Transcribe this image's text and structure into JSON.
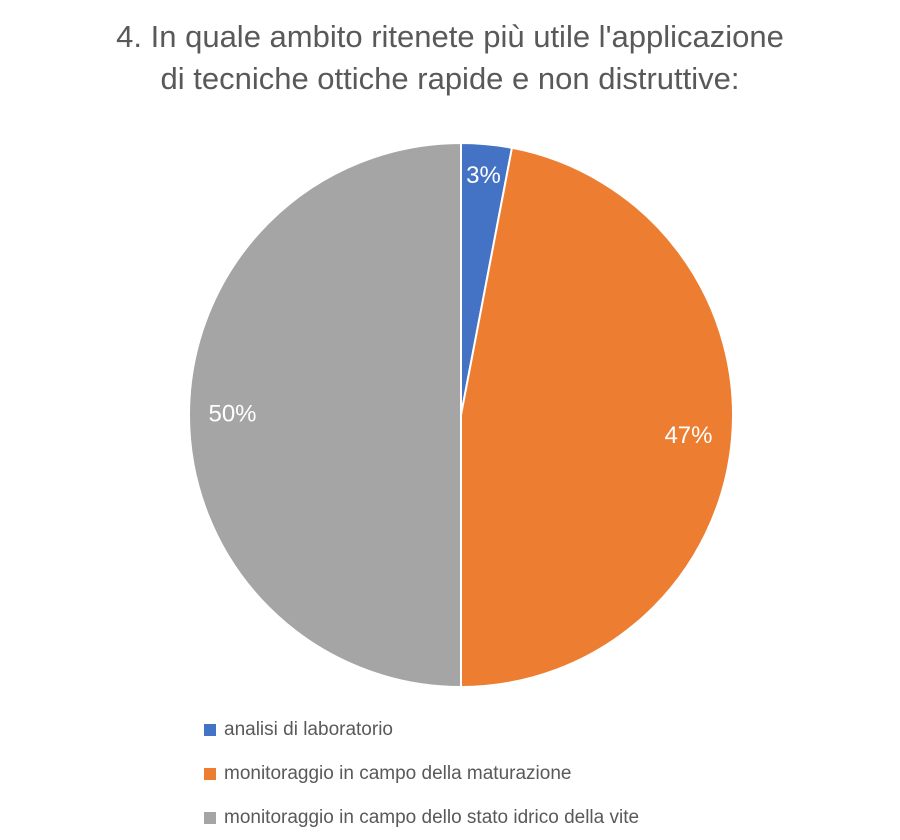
{
  "chart_data": {
    "type": "pie",
    "title_line1": "4. In quale ambito ritenete più utile l'applicazione",
    "title_line2": "di tecniche ottiche rapide e non distruttive:",
    "slices": [
      {
        "label": "analisi di laboratorio",
        "value": 3,
        "display": "3%",
        "color": "#4472C4"
      },
      {
        "label": "monitoraggio in campo della maturazione",
        "value": 47,
        "display": "47%",
        "color": "#ED7D31"
      },
      {
        "label": "monitoraggio in campo dello stato idrico della vite",
        "value": 50,
        "display": "50%",
        "color": "#A5A5A5"
      }
    ],
    "legend_position": "bottom",
    "data_label_color": "#ffffff"
  }
}
